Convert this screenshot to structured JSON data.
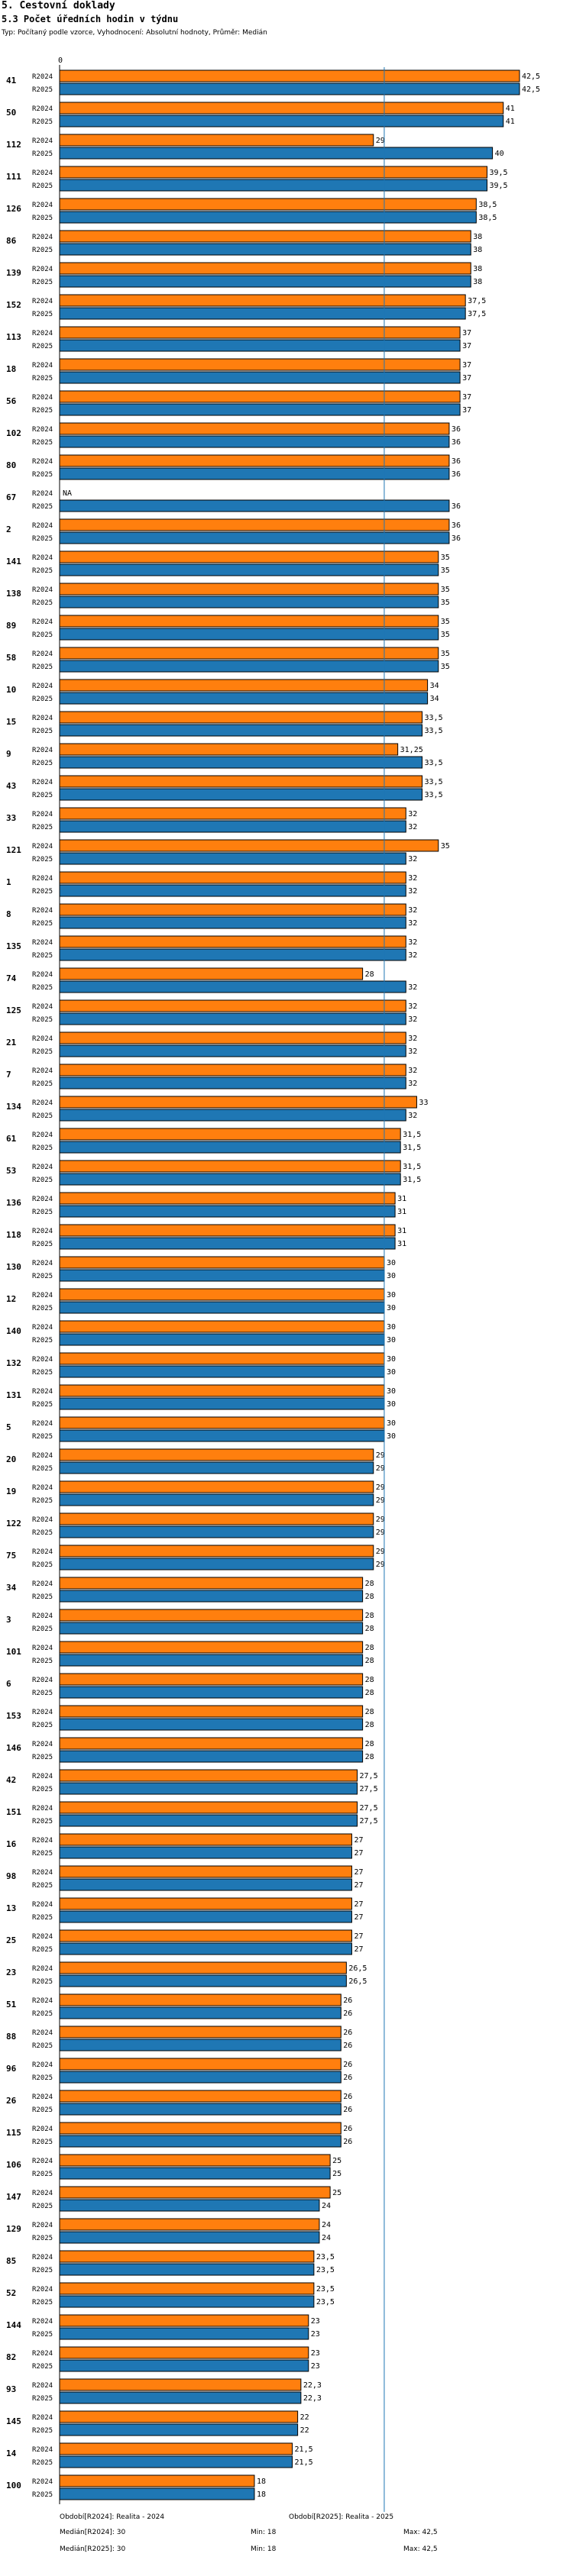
{
  "header": {
    "title": "5. Cestovní doklady",
    "subtitle": "5.3 Počet úředních hodin v týdnu",
    "info": "Typ: Počítaný podle vzorce, Vyhodnocení: Absolutní hodnoty, Průměr: Medián"
  },
  "colors": {
    "r2024": "#ff7f0e",
    "r2025": "#1f77b4",
    "median_line": "#1f77b4"
  },
  "chart_data": {
    "type": "bar",
    "orientation": "horizontal",
    "xlim": [
      0,
      42.5
    ],
    "axis_zero_label": "0",
    "series_labels": [
      "R2024",
      "R2025"
    ],
    "missing_label": "NA",
    "median_line_value": 30,
    "categories": [
      {
        "id": "41",
        "r2024": 42.5,
        "r2025": 42.5
      },
      {
        "id": "50",
        "r2024": 41,
        "r2025": 41
      },
      {
        "id": "112",
        "r2024": 29,
        "r2025": 40
      },
      {
        "id": "111",
        "r2024": 39.5,
        "r2025": 39.5
      },
      {
        "id": "126",
        "r2024": 38.5,
        "r2025": 38.5
      },
      {
        "id": "86",
        "r2024": 38,
        "r2025": 38
      },
      {
        "id": "139",
        "r2024": 38,
        "r2025": 38
      },
      {
        "id": "152",
        "r2024": 37.5,
        "r2025": 37.5
      },
      {
        "id": "113",
        "r2024": 37,
        "r2025": 37
      },
      {
        "id": "18",
        "r2024": 37,
        "r2025": 37
      },
      {
        "id": "56",
        "r2024": 37,
        "r2025": 37
      },
      {
        "id": "102",
        "r2024": 36,
        "r2025": 36
      },
      {
        "id": "80",
        "r2024": 36,
        "r2025": 36
      },
      {
        "id": "67",
        "r2024": null,
        "r2025": 36
      },
      {
        "id": "2",
        "r2024": 36,
        "r2025": 36
      },
      {
        "id": "141",
        "r2024": 35,
        "r2025": 35
      },
      {
        "id": "138",
        "r2024": 35,
        "r2025": 35
      },
      {
        "id": "89",
        "r2024": 35,
        "r2025": 35
      },
      {
        "id": "58",
        "r2024": 35,
        "r2025": 35
      },
      {
        "id": "10",
        "r2024": 34,
        "r2025": 34
      },
      {
        "id": "15",
        "r2024": 33.5,
        "r2025": 33.5
      },
      {
        "id": "9",
        "r2024": 31.25,
        "r2025": 33.5
      },
      {
        "id": "43",
        "r2024": 33.5,
        "r2025": 33.5
      },
      {
        "id": "33",
        "r2024": 32,
        "r2025": 32
      },
      {
        "id": "121",
        "r2024": 35,
        "r2025": 32
      },
      {
        "id": "1",
        "r2024": 32,
        "r2025": 32
      },
      {
        "id": "8",
        "r2024": 32,
        "r2025": 32
      },
      {
        "id": "135",
        "r2024": 32,
        "r2025": 32
      },
      {
        "id": "74",
        "r2024": 28,
        "r2025": 32
      },
      {
        "id": "125",
        "r2024": 32,
        "r2025": 32
      },
      {
        "id": "21",
        "r2024": 32,
        "r2025": 32
      },
      {
        "id": "7",
        "r2024": 32,
        "r2025": 32
      },
      {
        "id": "134",
        "r2024": 33,
        "r2025": 32
      },
      {
        "id": "61",
        "r2024": 31.5,
        "r2025": 31.5
      },
      {
        "id": "53",
        "r2024": 31.5,
        "r2025": 31.5
      },
      {
        "id": "136",
        "r2024": 31,
        "r2025": 31
      },
      {
        "id": "118",
        "r2024": 31,
        "r2025": 31
      },
      {
        "id": "130",
        "r2024": 30,
        "r2025": 30
      },
      {
        "id": "12",
        "r2024": 30,
        "r2025": 30
      },
      {
        "id": "140",
        "r2024": 30,
        "r2025": 30
      },
      {
        "id": "132",
        "r2024": 30,
        "r2025": 30
      },
      {
        "id": "131",
        "r2024": 30,
        "r2025": 30
      },
      {
        "id": "5",
        "r2024": 30,
        "r2025": 30
      },
      {
        "id": "20",
        "r2024": 29,
        "r2025": 29
      },
      {
        "id": "19",
        "r2024": 29,
        "r2025": 29
      },
      {
        "id": "122",
        "r2024": 29,
        "r2025": 29
      },
      {
        "id": "75",
        "r2024": 29,
        "r2025": 29
      },
      {
        "id": "34",
        "r2024": 28,
        "r2025": 28
      },
      {
        "id": "3",
        "r2024": 28,
        "r2025": 28
      },
      {
        "id": "101",
        "r2024": 28,
        "r2025": 28
      },
      {
        "id": "6",
        "r2024": 28,
        "r2025": 28
      },
      {
        "id": "153",
        "r2024": 28,
        "r2025": 28
      },
      {
        "id": "146",
        "r2024": 28,
        "r2025": 28
      },
      {
        "id": "42",
        "r2024": 27.5,
        "r2025": 27.5
      },
      {
        "id": "151",
        "r2024": 27.5,
        "r2025": 27.5
      },
      {
        "id": "16",
        "r2024": 27,
        "r2025": 27
      },
      {
        "id": "98",
        "r2024": 27,
        "r2025": 27
      },
      {
        "id": "13",
        "r2024": 27,
        "r2025": 27
      },
      {
        "id": "25",
        "r2024": 27,
        "r2025": 27
      },
      {
        "id": "23",
        "r2024": 26.5,
        "r2025": 26.5
      },
      {
        "id": "51",
        "r2024": 26,
        "r2025": 26
      },
      {
        "id": "88",
        "r2024": 26,
        "r2025": 26
      },
      {
        "id": "96",
        "r2024": 26,
        "r2025": 26
      },
      {
        "id": "26",
        "r2024": 26,
        "r2025": 26
      },
      {
        "id": "115",
        "r2024": 26,
        "r2025": 26
      },
      {
        "id": "106",
        "r2024": 25,
        "r2025": 25
      },
      {
        "id": "147",
        "r2024": 25,
        "r2025": 24
      },
      {
        "id": "129",
        "r2024": 24,
        "r2025": 24
      },
      {
        "id": "85",
        "r2024": 23.5,
        "r2025": 23.5
      },
      {
        "id": "52",
        "r2024": 23.5,
        "r2025": 23.5
      },
      {
        "id": "144",
        "r2024": 23,
        "r2025": 23
      },
      {
        "id": "82",
        "r2024": 23,
        "r2025": 23
      },
      {
        "id": "93",
        "r2024": 22.3,
        "r2025": 22.3
      },
      {
        "id": "145",
        "r2024": 22,
        "r2025": 22
      },
      {
        "id": "14",
        "r2024": 21.5,
        "r2025": 21.5
      },
      {
        "id": "100",
        "r2024": 18,
        "r2025": 18
      }
    ]
  },
  "footer": {
    "period_2024": "Období[R2024]: Realita - 2024",
    "period_2025": "Období[R2025]: Realita - 2025",
    "median_2024": "Medián[R2024]: 30",
    "min_2024": "Min: 18",
    "max_2024": "Max: 42,5",
    "median_2025": "Medián[R2025]: 30",
    "min_2025": "Min: 18",
    "max_2025": "Max: 42,5"
  }
}
